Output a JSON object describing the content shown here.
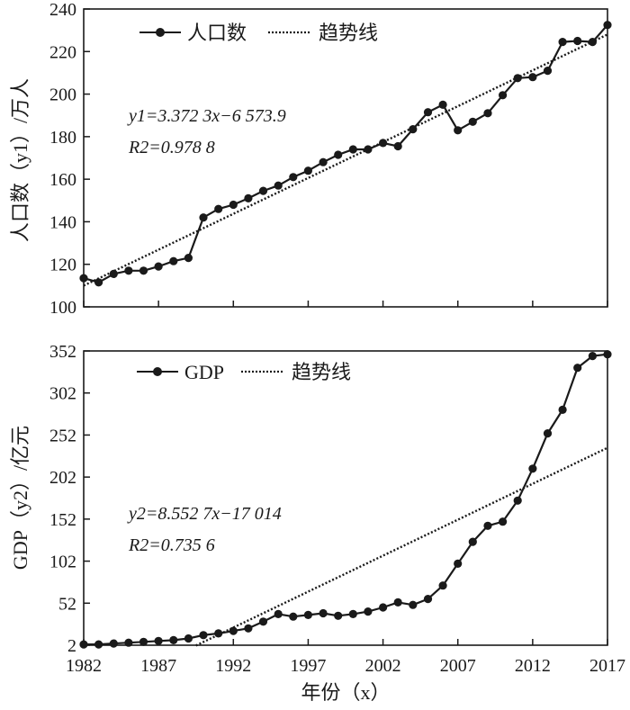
{
  "xlabel": "年份（x）",
  "chart_data": [
    {
      "type": "line",
      "ylabel": "人口数（y1）/万人",
      "xlim": [
        1982,
        2017
      ],
      "ylim": [
        100,
        240
      ],
      "x_ticks": [
        "1982",
        "1987",
        "1992",
        "1997",
        "2002",
        "2007",
        "2012",
        "2017"
      ],
      "y_ticks": [
        "100",
        "120",
        "140",
        "160",
        "180",
        "200",
        "220",
        "240"
      ],
      "legend": {
        "series": "人口数",
        "trend": "趋势线"
      },
      "equation": "y1=3.372 3x−6 573.9",
      "r2": "R2=0.978 8",
      "trend": {
        "slope": 3.3723,
        "intercept": -6573.9,
        "x_start": 1982,
        "x_end": 2017
      },
      "series": [
        {
          "name": "人口数",
          "x": [
            1982,
            1983,
            1984,
            1985,
            1986,
            1987,
            1988,
            1989,
            1990,
            1991,
            1992,
            1993,
            1994,
            1995,
            1996,
            1997,
            1998,
            1999,
            2000,
            2001,
            2002,
            2003,
            2004,
            2005,
            2006,
            2007,
            2008,
            2009,
            2010,
            2011,
            2012,
            2013,
            2014,
            2015,
            2016,
            2017
          ],
          "values": [
            113.5,
            111.5,
            115.5,
            117,
            117,
            119,
            121.5,
            123,
            142,
            146,
            148,
            151,
            154.5,
            157,
            161,
            164,
            168,
            171.5,
            174,
            174,
            177,
            175.5,
            183.5,
            191.5,
            195,
            183,
            187,
            191,
            199.5,
            207.5,
            208,
            211,
            224.5,
            225,
            224.5,
            232.5
          ]
        }
      ]
    },
    {
      "type": "line",
      "ylabel": "GDP（y2）/亿元",
      "xlim": [
        1982,
        2017
      ],
      "ylim": [
        2,
        352
      ],
      "x_ticks": [
        "1982",
        "1987",
        "1992",
        "1997",
        "2002",
        "2007",
        "2012",
        "2017"
      ],
      "y_ticks": [
        "2",
        "52",
        "102",
        "152",
        "202",
        "252",
        "302",
        "352"
      ],
      "legend": {
        "series": "GDP",
        "trend": "趋势线"
      },
      "equation": "y2=8.552 7x−17 014",
      "r2": "R2=0.735 6",
      "trend": {
        "slope": 8.5527,
        "intercept": -17014,
        "x_start": 1989.5,
        "x_end": 2017
      },
      "series": [
        {
          "name": "GDP",
          "x": [
            1982,
            1983,
            1984,
            1985,
            1986,
            1987,
            1988,
            1989,
            1990,
            1991,
            1992,
            1993,
            1994,
            1995,
            1996,
            1997,
            1998,
            1999,
            2000,
            2001,
            2002,
            2003,
            2004,
            2005,
            2006,
            2007,
            2008,
            2009,
            2010,
            2011,
            2012,
            2013,
            2014,
            2015,
            2016,
            2017
          ],
          "values": [
            3,
            3,
            4,
            5,
            6,
            7,
            8,
            10,
            14,
            16,
            19,
            22,
            30,
            39,
            36,
            38,
            40,
            37,
            39,
            42,
            47,
            53,
            50,
            57,
            73,
            99,
            125,
            144,
            149,
            174,
            212,
            254,
            282,
            332,
            346,
            348
          ]
        }
      ]
    }
  ]
}
